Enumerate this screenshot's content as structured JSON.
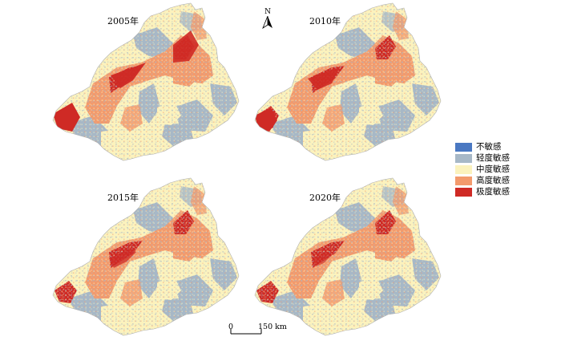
{
  "panels": [
    {
      "year": "2005年",
      "variant": "a"
    },
    {
      "year": "2010年",
      "variant": "b"
    },
    {
      "year": "2015年",
      "variant": "c"
    },
    {
      "year": "2020年",
      "variant": "d"
    }
  ],
  "north_label": "N",
  "scale": {
    "zero_label": "0",
    "end_label": "150 km"
  },
  "legend": {
    "items": [
      {
        "label": "不敏感",
        "color": "#4a78c2"
      },
      {
        "label": "轻度敏感",
        "color": "#a7b8c7"
      },
      {
        "label": "中度敏感",
        "color": "#fbf2bd"
      },
      {
        "label": "高度敏感",
        "color": "#f39a6c"
      },
      {
        "label": "极度敏感",
        "color": "#cf2a25"
      }
    ]
  }
}
